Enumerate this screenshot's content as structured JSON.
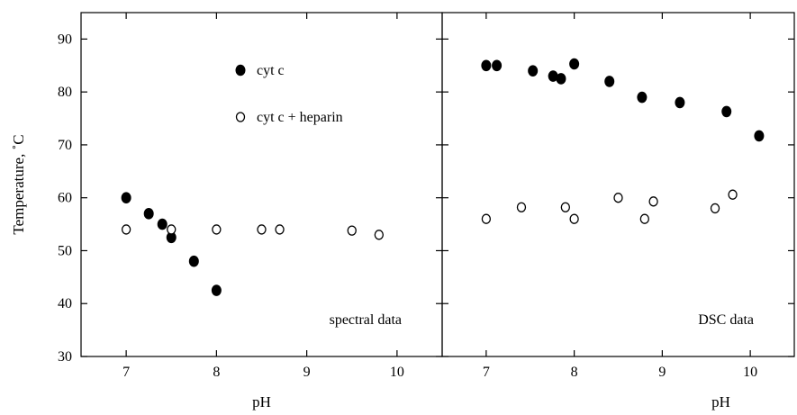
{
  "chart_data": [
    {
      "type": "scatter",
      "panel_label": "spectral data",
      "xlabel": "pH",
      "ylabel": "Temperature, ˚C",
      "xlim": [
        6.5,
        10.5
      ],
      "ylim": [
        30,
        95
      ],
      "x_ticks": [
        7,
        8,
        9,
        10
      ],
      "y_ticks": [
        30,
        40,
        50,
        60,
        70,
        80,
        90
      ],
      "legend": {
        "placement": "top-center",
        "entries": [
          {
            "label": "cyt c",
            "marker": "filled"
          },
          {
            "label": "cyt c + heparin",
            "marker": "open"
          }
        ]
      },
      "series": [
        {
          "marker": "filled",
          "points": [
            {
              "x": 7.0,
              "y": 60.0
            },
            {
              "x": 7.25,
              "y": 57.0
            },
            {
              "x": 7.4,
              "y": 55.0
            },
            {
              "x": 7.5,
              "y": 52.5
            },
            {
              "x": 7.75,
              "y": 48.0
            },
            {
              "x": 8.0,
              "y": 42.5
            }
          ]
        },
        {
          "marker": "open",
          "points": [
            {
              "x": 7.0,
              "y": 54.0
            },
            {
              "x": 7.5,
              "y": 54.0
            },
            {
              "x": 8.0,
              "y": 54.0
            },
            {
              "x": 8.5,
              "y": 54.0
            },
            {
              "x": 8.7,
              "y": 54.0
            },
            {
              "x": 9.5,
              "y": 53.8
            },
            {
              "x": 9.8,
              "y": 53.0
            }
          ]
        }
      ]
    },
    {
      "type": "scatter",
      "panel_label": "DSC data",
      "xlabel": "pH",
      "ylabel": "",
      "xlim": [
        6.5,
        10.5
      ],
      "ylim": [
        30,
        95
      ],
      "x_ticks": [
        7,
        8,
        9,
        10
      ],
      "y_ticks": [
        30,
        40,
        50,
        60,
        70,
        80,
        90
      ],
      "series": [
        {
          "marker": "filled",
          "points": [
            {
              "x": 7.0,
              "y": 85.0
            },
            {
              "x": 7.12,
              "y": 85.0
            },
            {
              "x": 7.53,
              "y": 84.0
            },
            {
              "x": 7.76,
              "y": 83.0
            },
            {
              "x": 7.85,
              "y": 82.5
            },
            {
              "x": 8.0,
              "y": 85.3
            },
            {
              "x": 8.4,
              "y": 82.0
            },
            {
              "x": 8.77,
              "y": 79.0
            },
            {
              "x": 9.2,
              "y": 78.0
            },
            {
              "x": 9.73,
              "y": 76.3
            },
            {
              "x": 10.1,
              "y": 71.7
            }
          ]
        },
        {
          "marker": "open",
          "points": [
            {
              "x": 7.0,
              "y": 56.0
            },
            {
              "x": 7.4,
              "y": 58.2
            },
            {
              "x": 7.9,
              "y": 58.2
            },
            {
              "x": 8.0,
              "y": 56.0
            },
            {
              "x": 8.5,
              "y": 60.0
            },
            {
              "x": 8.8,
              "y": 56.0
            },
            {
              "x": 8.9,
              "y": 59.3
            },
            {
              "x": 9.6,
              "y": 58.0
            },
            {
              "x": 9.8,
              "y": 60.6
            }
          ]
        }
      ]
    }
  ]
}
